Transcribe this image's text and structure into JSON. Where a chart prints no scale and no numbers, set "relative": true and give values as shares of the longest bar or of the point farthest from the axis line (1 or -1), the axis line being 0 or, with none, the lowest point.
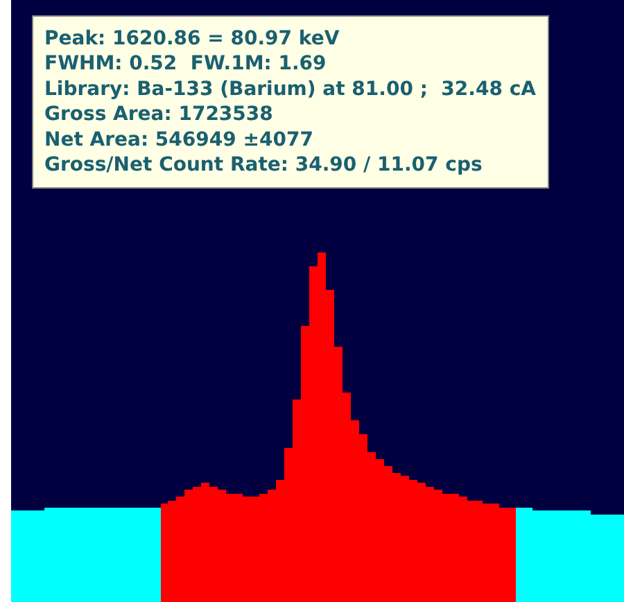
{
  "chart_data": {
    "type": "bar",
    "relative": true,
    "tick_labels": false,
    "categories": [
      null,
      null,
      null,
      null,
      null,
      null,
      null,
      null,
      null,
      null,
      null,
      null,
      null,
      null,
      null,
      null,
      null,
      null,
      null,
      null,
      null,
      null,
      null,
      null,
      null,
      null,
      null,
      null,
      null,
      null,
      null,
      null,
      null,
      null,
      null,
      null,
      null,
      null,
      null,
      null,
      null,
      null,
      null,
      null,
      null,
      null,
      null,
      null,
      null,
      null,
      null,
      null,
      null,
      null,
      null,
      null,
      null,
      null,
      null,
      null,
      null,
      null,
      null,
      null,
      null,
      null,
      null,
      null,
      null,
      null,
      null,
      null,
      null,
      null
    ],
    "values": [
      0.26,
      0.26,
      0.26,
      0.26,
      0.27,
      0.27,
      0.27,
      0.27,
      0.27,
      0.27,
      0.27,
      0.27,
      0.27,
      0.27,
      0.27,
      0.27,
      0.27,
      0.27,
      0.28,
      0.29,
      0.3,
      0.32,
      0.33,
      0.34,
      0.33,
      0.32,
      0.31,
      0.31,
      0.3,
      0.3,
      0.31,
      0.32,
      0.35,
      0.44,
      0.58,
      0.79,
      0.96,
      1,
      0.89,
      0.73,
      0.6,
      0.52,
      0.48,
      0.43,
      0.41,
      0.39,
      0.37,
      0.36,
      0.35,
      0.34,
      0.33,
      0.32,
      0.31,
      0.31,
      0.3,
      0.29,
      0.29,
      0.28,
      0.28,
      0.27,
      0.27,
      0.27,
      0.27,
      0.26,
      0.26,
      0.26,
      0.26,
      0.26,
      0.26,
      0.26,
      0.25,
      0.25,
      0.25,
      0.25
    ],
    "colors": [
      "#00ffff",
      "#00ffff",
      "#00ffff",
      "#00ffff",
      "#00ffff",
      "#00ffff",
      "#00ffff",
      "#00ffff",
      "#00ffff",
      "#00ffff",
      "#00ffff",
      "#00ffff",
      "#00ffff",
      "#00ffff",
      "#00ffff",
      "#00ffff",
      "#00ffff",
      "#00ffff",
      "#ff0000",
      "#ff0000",
      "#ff0000",
      "#ff0000",
      "#ff0000",
      "#ff0000",
      "#ff0000",
      "#ff0000",
      "#ff0000",
      "#ff0000",
      "#ff0000",
      "#ff0000",
      "#ff0000",
      "#ff0000",
      "#ff0000",
      "#ff0000",
      "#ff0000",
      "#ff0000",
      "#ff0000",
      "#ff0000",
      "#ff0000",
      "#ff0000",
      "#ff0000",
      "#ff0000",
      "#ff0000",
      "#ff0000",
      "#ff0000",
      "#ff0000",
      "#ff0000",
      "#ff0000",
      "#ff0000",
      "#ff0000",
      "#ff0000",
      "#ff0000",
      "#ff0000",
      "#ff0000",
      "#ff0000",
      "#ff0000",
      "#ff0000",
      "#ff0000",
      "#ff0000",
      "#ff0000",
      "#ff0000",
      "#00ffff",
      "#00ffff",
      "#00ffff",
      "#00ffff",
      "#00ffff",
      "#00ffff",
      "#00ffff",
      "#00ffff",
      "#00ffff",
      "#00ffff",
      "#00ffff",
      "#00ffff",
      "#00ffff"
    ],
    "annotations": [
      "Peak: 1620.86 = 80.97 keV",
      "FWHM: 0.52  FW.1M: 1.69",
      "Library: Ba-133 (Barium) at 81.00 ;  32.48 cA",
      "Gross Area: 1723538",
      "Net Area: 546949 ±4077",
      "Gross/Net Count Rate: 34.90 / 11.07 cps"
    ]
  }
}
